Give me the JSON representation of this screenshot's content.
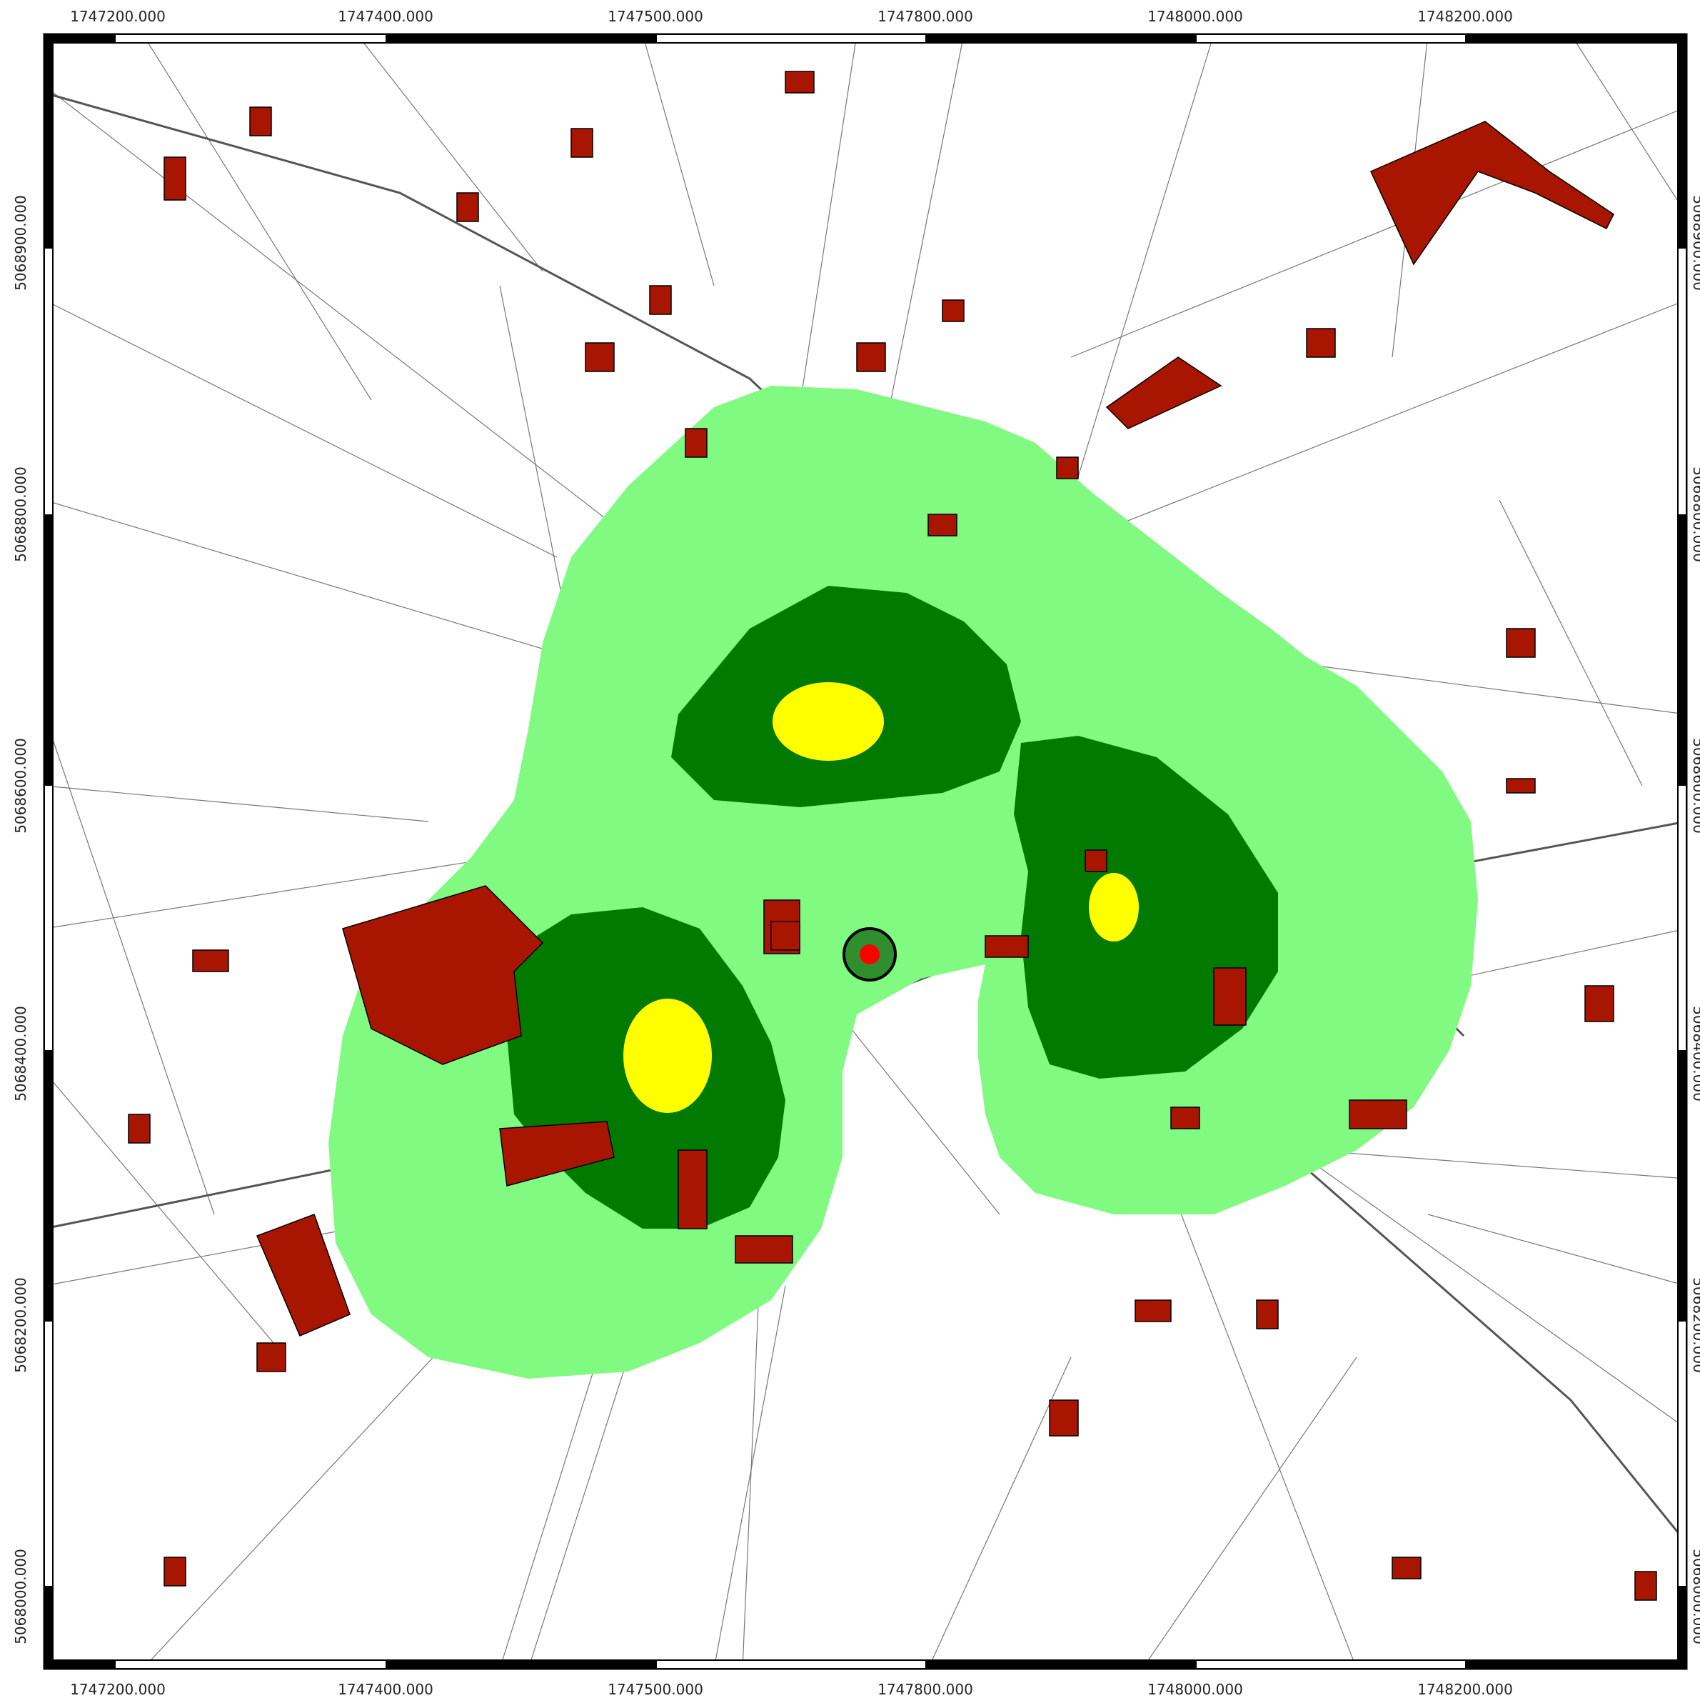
{
  "map": {
    "x_ticks": [
      "1747200.000",
      "1747400.000",
      "1747500.000",
      "1747800.000",
      "1748000.000",
      "1748200.000"
    ],
    "y_ticks": [
      "5068900.000",
      "5068800.000",
      "5068600.000",
      "5068400.000",
      "5068200.000",
      "5068000.000"
    ],
    "colors": {
      "zone_outer": "#80fa80",
      "zone_mid": "#007a00",
      "zone_core": "#ffff00",
      "building": "#a81500",
      "road": "#555555",
      "point_ring": "#2f8f2f",
      "point_center": "#ff0000"
    },
    "layers": [
      "parcel-lines",
      "buildings",
      "noise-zone-outer",
      "noise-zone-mid",
      "noise-zone-core",
      "source-point"
    ]
  }
}
